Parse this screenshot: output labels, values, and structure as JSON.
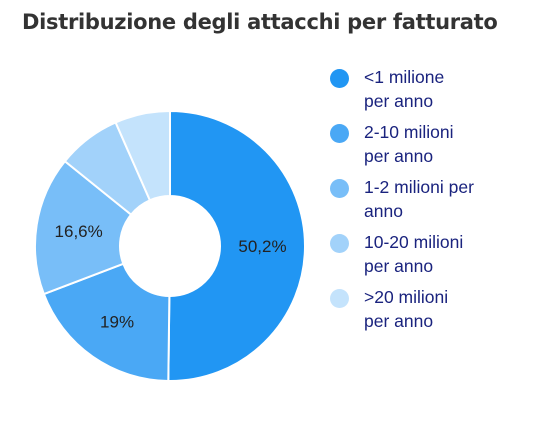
{
  "chart_data": {
    "type": "pie",
    "donut": true,
    "title": "Distribuzione degli attacchi per fatturato",
    "slices": [
      {
        "label": "<1 milione per anno",
        "value": 50.2,
        "display": "50,2%",
        "color": "#2196f3"
      },
      {
        "label": "2-10 milioni per anno",
        "value": 19.0,
        "display": "19%",
        "color": "#4aa8f5"
      },
      {
        "label": "1-2 milioni per anno",
        "value": 16.6,
        "display": "16,6%",
        "color": "#78bef8"
      },
      {
        "label": "10-20 milioni per anno",
        "value": 7.6,
        "display": "",
        "color": "#a2d2fa"
      },
      {
        "label": ">20 milioni per anno",
        "value": 6.6,
        "display": "",
        "color": "#c4e3fc"
      }
    ],
    "legend_position": "right"
  }
}
